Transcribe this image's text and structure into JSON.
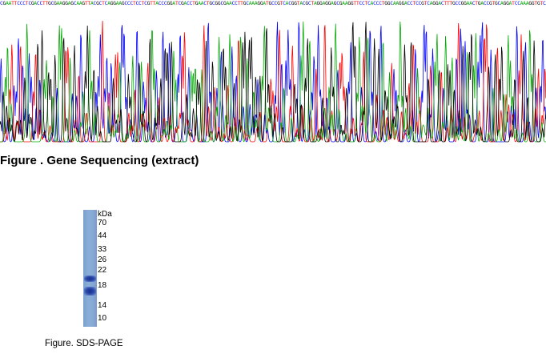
{
  "sequencing": {
    "caption": "Figure . Gene Sequencing (extract)",
    "base_sequence": "CGAATTCCCTCGACCTTGCGAAGGAGCAAGTTACGCTCAGGAAGCCCTCCTCGTTACCCGGATCGACCTGAACTGCGGCGAACCTTGCAAAGGATGCCGTCACGGTACGCTAGGAGGAGCGAAGGTTCCTCACCCTGGCAAGGACCTCCGTCAGGACTTTGCCGGAACTGACCGTGCAGGATCCAAAGGTGTCATCCCGTCAAGTCAGGAGCTCGCAGGAACCCTTGCAGTGGATAAAGCTTGCGAAGCTCCT",
    "base_colors": {
      "A": "#00aa00",
      "C": "#0000ff",
      "G": "#000000",
      "T": "#ff0000"
    }
  },
  "sds_page": {
    "caption": "Figure. SDS-PAGE",
    "unit_label": "kDa",
    "marker_labels": [
      "70",
      "44",
      "33",
      "26",
      "22",
      "18",
      "14",
      "10"
    ],
    "lane_color": "#86a9d4",
    "band_color": "#1f3a94"
  }
}
